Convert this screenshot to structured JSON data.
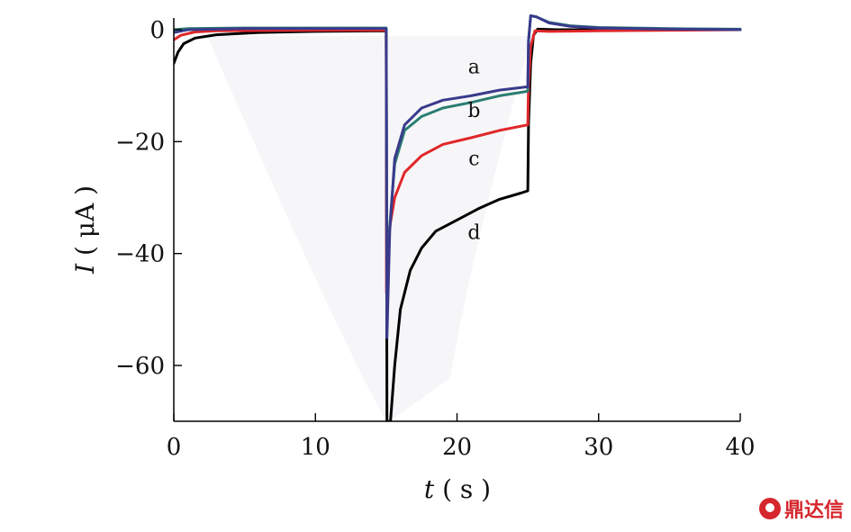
{
  "chart_data": {
    "type": "line",
    "xlabel_var": "t",
    "xlabel_unit": "( s )",
    "ylabel_var": "I",
    "ylabel_unit": "( μA )",
    "xlim": [
      0,
      40
    ],
    "ylim": [
      -70,
      2
    ],
    "x_ticks": [
      0,
      10,
      20,
      30,
      40
    ],
    "x_tick_labels": [
      "0",
      "10",
      "20",
      "30",
      "40"
    ],
    "y_ticks": [
      0,
      -20,
      -40,
      -60
    ],
    "y_tick_labels": [
      "0",
      "−20",
      "−40",
      "−60"
    ],
    "grid": false,
    "series": [
      {
        "label": "d",
        "color": "#000000",
        "points": [
          [
            0,
            -6
          ],
          [
            0.3,
            -4
          ],
          [
            0.7,
            -2.5
          ],
          [
            1.5,
            -1.5
          ],
          [
            3,
            -0.9
          ],
          [
            6,
            -0.5
          ],
          [
            10,
            -0.3
          ],
          [
            15,
            -0.2
          ],
          [
            15.05,
            -70
          ],
          [
            15.3,
            -70
          ],
          [
            15.6,
            -60
          ],
          [
            16,
            -50
          ],
          [
            16.7,
            -43
          ],
          [
            17.5,
            -39
          ],
          [
            18.5,
            -36
          ],
          [
            20,
            -34
          ],
          [
            21.5,
            -32
          ],
          [
            23,
            -30.3
          ],
          [
            24.5,
            -29.2
          ],
          [
            25,
            -28.8
          ],
          [
            25.05,
            -17
          ],
          [
            25.2,
            -6
          ],
          [
            25.4,
            -1
          ],
          [
            25.7,
            0.1
          ],
          [
            27,
            0
          ],
          [
            30,
            0
          ],
          [
            35,
            0
          ],
          [
            40,
            0
          ]
        ]
      },
      {
        "label": "c",
        "color": "#e0272a",
        "points": [
          [
            0,
            -1.8
          ],
          [
            0.5,
            -1
          ],
          [
            1.5,
            -0.4
          ],
          [
            3,
            -0.2
          ],
          [
            10,
            -0.1
          ],
          [
            15,
            -0.1
          ],
          [
            15.02,
            -47
          ],
          [
            15.2,
            -36
          ],
          [
            15.6,
            -30
          ],
          [
            16.3,
            -25.5
          ],
          [
            17.5,
            -22.5
          ],
          [
            19,
            -20.5
          ],
          [
            21,
            -19.3
          ],
          [
            23,
            -18
          ],
          [
            25,
            -17
          ],
          [
            25.05,
            -10
          ],
          [
            25.2,
            -3
          ],
          [
            25.5,
            -0.2
          ],
          [
            26.5,
            -0.3
          ],
          [
            30,
            -0.2
          ],
          [
            35,
            -0.1
          ],
          [
            40,
            0
          ]
        ]
      },
      {
        "label": "b",
        "color": "#2a7d72",
        "points": [
          [
            0,
            0
          ],
          [
            1,
            0.2
          ],
          [
            5,
            0.3
          ],
          [
            15,
            0.3
          ],
          [
            15.05,
            -50
          ],
          [
            15.25,
            -35
          ],
          [
            15.6,
            -24
          ],
          [
            16.3,
            -18
          ],
          [
            17.5,
            -15.5
          ],
          [
            19,
            -14
          ],
          [
            21,
            -13
          ],
          [
            23,
            -11.8
          ],
          [
            25,
            -11
          ],
          [
            25.05,
            -2
          ],
          [
            25.2,
            2.5
          ],
          [
            25.6,
            2.3
          ],
          [
            26.5,
            1.3
          ],
          [
            28,
            0.7
          ],
          [
            30,
            0.4
          ],
          [
            35,
            0.2
          ],
          [
            40,
            0.1
          ]
        ]
      },
      {
        "label": "a",
        "color": "#3a3a8c",
        "points": [
          [
            0,
            -0.5
          ],
          [
            1,
            0
          ],
          [
            5,
            0.2
          ],
          [
            15,
            0.2
          ],
          [
            15.05,
            -55
          ],
          [
            15.25,
            -36
          ],
          [
            15.6,
            -23
          ],
          [
            16.3,
            -17
          ],
          [
            17.5,
            -14
          ],
          [
            19,
            -12.6
          ],
          [
            21,
            -11.8
          ],
          [
            23,
            -10.8
          ],
          [
            25,
            -10.2
          ],
          [
            25.05,
            -2
          ],
          [
            25.2,
            2.5
          ],
          [
            25.6,
            2.3
          ],
          [
            26.5,
            1.2
          ],
          [
            28,
            0.6
          ],
          [
            30,
            0.3
          ],
          [
            35,
            0.1
          ],
          [
            40,
            0
          ]
        ]
      }
    ],
    "annotations": [
      {
        "text": "a",
        "x": 21.2,
        "y": -7.8
      },
      {
        "text": "b",
        "x": 21.2,
        "y": -15.6
      },
      {
        "text": "c",
        "x": 21.2,
        "y": -24.2
      },
      {
        "text": "d",
        "x": 21.2,
        "y": -37.4
      }
    ]
  },
  "watermark": {
    "text": "鼎达信",
    "color": "#d6262d"
  }
}
